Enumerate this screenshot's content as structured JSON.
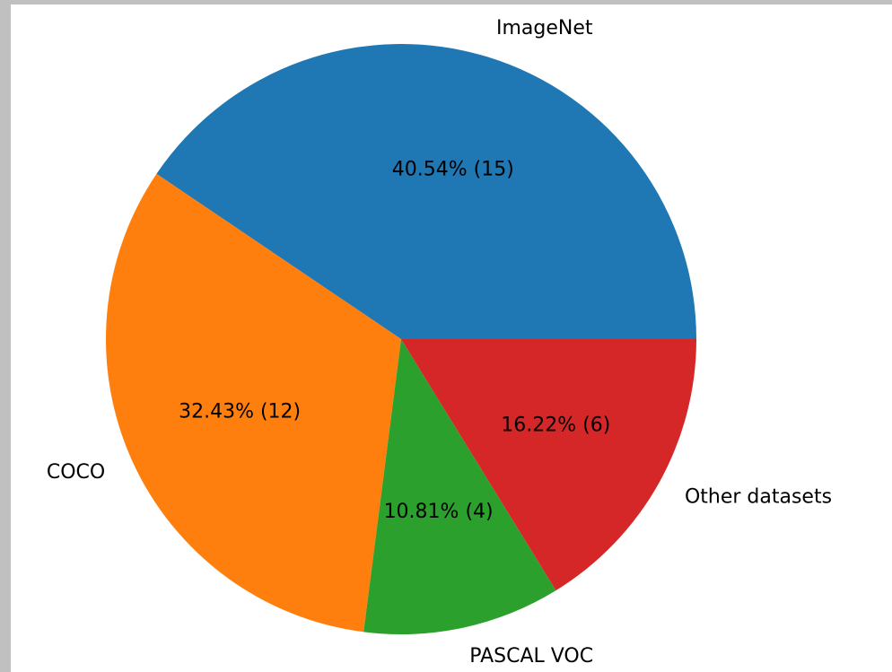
{
  "chart_data": {
    "type": "pie",
    "categories": [
      "ImageNet",
      "COCO",
      "PASCAL VOC",
      "Other datasets"
    ],
    "values": [
      15,
      12,
      4,
      6
    ],
    "value_labels": [
      "40.54% (15)",
      "32.43% (12)",
      "10.81% (4)",
      "16.22% (6)"
    ],
    "colors": [
      "#1f77b4",
      "#ff7f0e",
      "#2ca02c",
      "#d62728"
    ]
  }
}
